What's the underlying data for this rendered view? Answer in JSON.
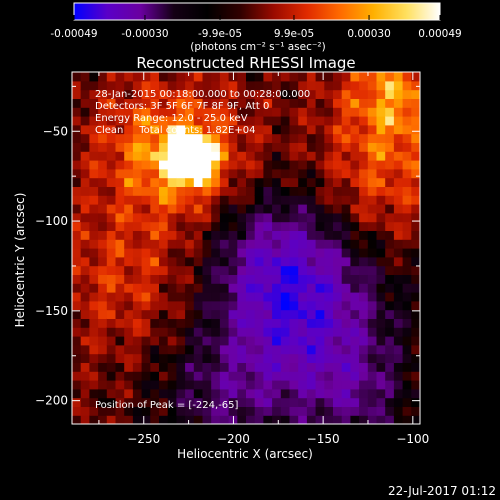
{
  "colorbar": {
    "tick_labels": [
      "-0.00049",
      "-0.00030",
      "-9.9e-05",
      "9.9e-05",
      "0.00030",
      "0.00049"
    ],
    "tick_values": [
      -0.00049,
      -0.0003,
      -9.9e-05,
      9.9e-05,
      0.0003,
      0.00049
    ],
    "range": [
      -0.00049,
      0.00049
    ],
    "unit_label": "(photons cm⁻² s⁻¹ asec⁻²)",
    "colors": [
      "#0000ff",
      "#5a00c8",
      "#6a00a0",
      "#140014",
      "#000000",
      "#300000",
      "#9a0a00",
      "#e02a00",
      "#ff6a00",
      "#ffb000",
      "#ffe060",
      "#ffffff"
    ]
  },
  "chart_data": {
    "type": "heatmap",
    "title": "Reconstructed RHESSI Image",
    "xlabel": "Heliocentric X (arcsec)",
    "ylabel": "Heliocentric Y (arcsec)",
    "xlim": [
      -290,
      -96
    ],
    "ylim": [
      -213,
      -17
    ],
    "x_ticks": [
      -250,
      -200,
      -150,
      -100
    ],
    "y_ticks": [
      -50,
      -100,
      -150,
      -200
    ],
    "x_tick_labels": [
      "−250",
      "−200",
      "−150",
      "−100"
    ],
    "y_tick_labels": [
      "−50",
      "−100",
      "−150",
      "−200"
    ],
    "peak": [
      -224,
      -65
    ],
    "info_lines": [
      "28-Jan-2015 00:18:00.000 to 00:28:00.000",
      "Detectors: 3F 5F 6F 7F 8F 9F, Att 0",
      "Energy Range: 12.0 - 25.0 keV",
      "Clean     Total counts: 1.82E+04"
    ],
    "peak_label": "Position of Peak = [-224,-65]"
  },
  "footer": {
    "timestamp": "22-Jul-2017 01:12"
  }
}
